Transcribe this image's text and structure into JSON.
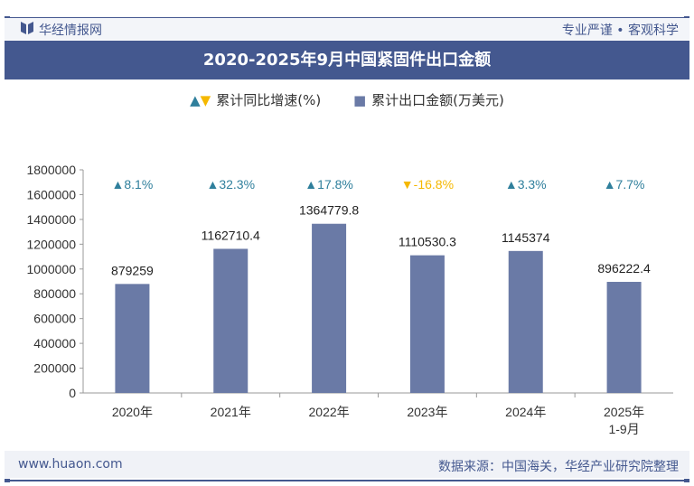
{
  "header": {
    "brand": "华经情报网",
    "slogan": "专业严谨 • 客观科学"
  },
  "title": "2020-2025年9月中国紧固件出口金额",
  "legend": {
    "growth": "累计同比增速(%)",
    "amount": "累计出口金额(万美元)"
  },
  "footer": {
    "site": "www.huaon.com",
    "source": "数据来源：中国海关，华经产业研究院整理"
  },
  "colors": {
    "bar": "#6a7aa6",
    "up": "#2f7f9c",
    "down": "#f5b800",
    "accent": "#44588f"
  },
  "chart_data": {
    "type": "bar",
    "categories": [
      "2020年",
      "2021年",
      "2022年",
      "2023年",
      "2024年",
      "2025年\n1-9月"
    ],
    "series": [
      {
        "name": "累计出口金额(万美元)",
        "values": [
          879259,
          1162710.4,
          1364779.8,
          1110530.3,
          1145374,
          896222.4
        ],
        "labels": [
          "879259",
          "1162710.4",
          "1364779.8",
          "1110530.3",
          "1145374",
          "896222.4"
        ]
      },
      {
        "name": "累计同比增速(%)",
        "values": [
          8.1,
          32.3,
          17.8,
          -16.8,
          3.3,
          7.7
        ],
        "labels": [
          "8.1%",
          "32.3%",
          "17.8%",
          "-16.8%",
          "3.3%",
          "7.7%"
        ]
      }
    ],
    "ylim": [
      0,
      1800000
    ],
    "yticks": [
      "0",
      "200000",
      "400000",
      "600000",
      "800000",
      "1000000",
      "1200000",
      "1400000",
      "1600000",
      "1800000"
    ]
  }
}
